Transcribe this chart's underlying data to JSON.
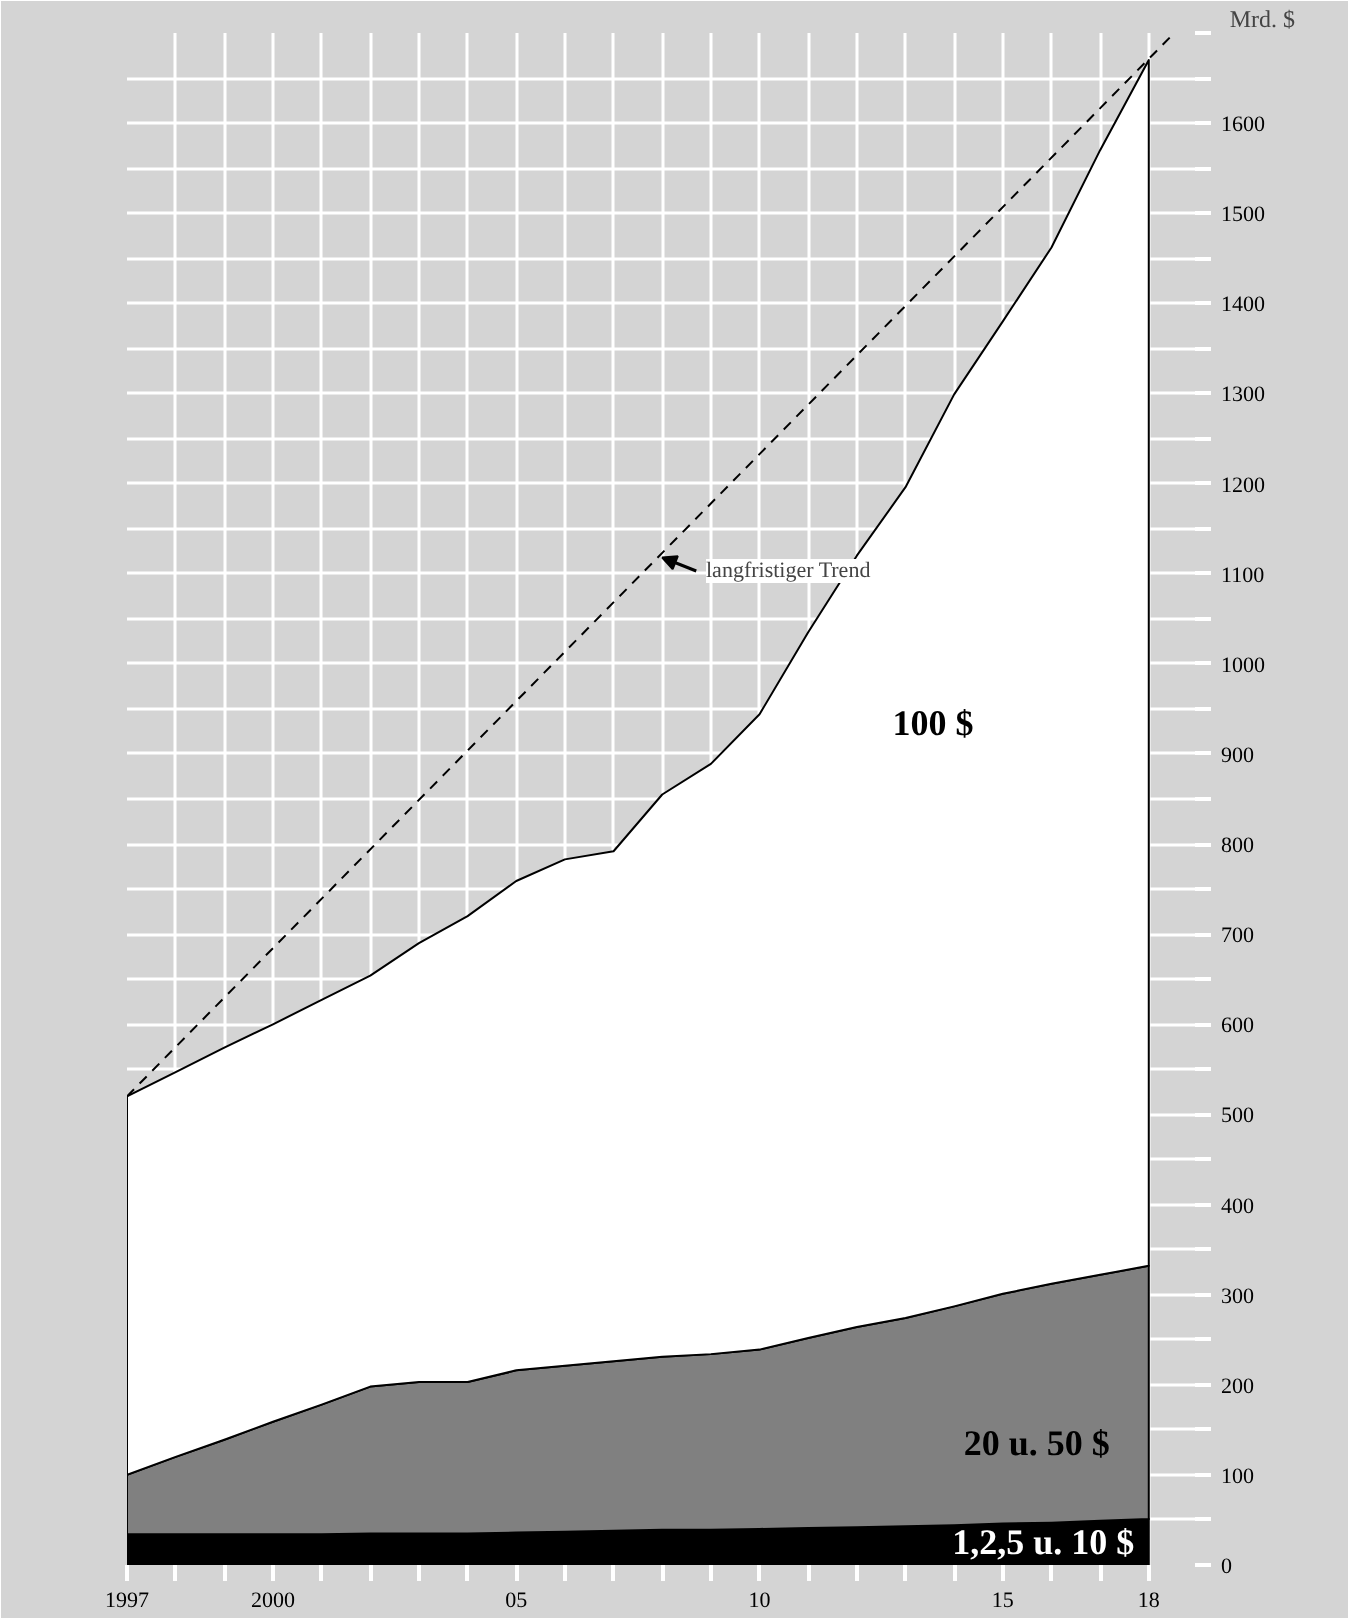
{
  "chart_data": {
    "type": "area",
    "stacked": true,
    "ylabel": "Mrd. $",
    "x": [
      1997,
      1998,
      1999,
      2000,
      2001,
      2002,
      2003,
      2004,
      2005,
      2006,
      2007,
      2008,
      2009,
      2010,
      2011,
      2012,
      2013,
      2014,
      2015,
      2016,
      2017,
      2018
    ],
    "series": [
      {
        "name": "1,2,5 u. 10 $",
        "color": "#000000",
        "values": [
          34,
          34,
          34,
          34,
          34,
          35,
          35,
          35,
          36,
          37,
          38,
          39,
          39,
          40,
          41,
          42,
          43,
          44,
          46,
          47,
          49,
          51
        ]
      },
      {
        "name": "20 u. 50 $",
        "color": "#808080",
        "values": [
          66,
          86,
          105,
          125,
          144,
          163,
          168,
          168,
          180,
          184,
          188,
          192,
          195,
          199,
          211,
          222,
          231,
          243,
          255,
          265,
          273,
          281
        ]
      },
      {
        "name": "100 $",
        "color": "#ffffff",
        "values": [
          420,
          427,
          435,
          441,
          449,
          456,
          487,
          517,
          543,
          562,
          566,
          624,
          655,
          705,
          783,
          856,
          922,
          1012,
          1079,
          1150,
          1248,
          1338
        ]
      },
      {
        "type": "line",
        "color": "#000000",
        "line_style": "dashed",
        "x": [
          1997,
          2018.45
        ],
        "values": [
          520,
          1696
        ]
      }
    ],
    "xlim": [
      1997,
      2018.95
    ],
    "ylim": [
      0,
      1700
    ],
    "xticks": [
      1997,
      {
        "value": 1998,
        "label": null
      },
      {
        "value": 1999,
        "label": null
      },
      {
        "value": 2000,
        "label": "2000"
      },
      {
        "value": 2001,
        "label": null
      },
      {
        "value": 2002,
        "label": null
      },
      {
        "value": 2003,
        "label": null
      },
      {
        "value": 2004,
        "label": null
      },
      {
        "value": 2005,
        "label": "05"
      },
      {
        "value": 2006,
        "label": null
      },
      {
        "value": 2007,
        "label": null
      },
      {
        "value": 2008,
        "label": null
      },
      {
        "value": 2009,
        "label": null
      },
      {
        "value": 2010,
        "label": "10"
      },
      {
        "value": 2011,
        "label": null
      },
      {
        "value": 2012,
        "label": null
      },
      {
        "value": 2013,
        "label": null
      },
      {
        "value": 2014,
        "label": null
      },
      {
        "value": 2015,
        "label": "15"
      },
      {
        "value": 2016,
        "label": null
      },
      {
        "value": 2017,
        "label": null
      },
      {
        "value": 2018,
        "label": "18"
      }
    ],
    "yticks": [
      0,
      {
        "value": 50,
        "label": null
      },
      100,
      {
        "value": 150,
        "label": null
      },
      200,
      {
        "value": 250,
        "label": null
      },
      300,
      {
        "value": 350,
        "label": null
      },
      400,
      {
        "value": 450,
        "label": null
      },
      500,
      {
        "value": 550,
        "label": null
      },
      600,
      {
        "value": 650,
        "label": null
      },
      700,
      {
        "value": 750,
        "label": null
      },
      800,
      {
        "value": 850,
        "label": null
      },
      900,
      {
        "value": 950,
        "label": null
      },
      1000,
      {
        "value": 1050,
        "label": null
      },
      1100,
      {
        "value": 1150,
        "label": null
      },
      1200,
      {
        "value": 1250,
        "label": null
      },
      1300,
      {
        "value": 1350,
        "label": null
      },
      1400,
      {
        "value": 1450,
        "label": null
      },
      1500,
      {
        "value": 1550,
        "label": null
      },
      1600,
      {
        "value": 1650,
        "label": null
      },
      {
        "value": 1700,
        "label": null
      }
    ],
    "grid": true,
    "annotations": [
      {
        "text": "langfristiger Trend",
        "x": 2008,
        "y": 1118
      }
    ]
  }
}
